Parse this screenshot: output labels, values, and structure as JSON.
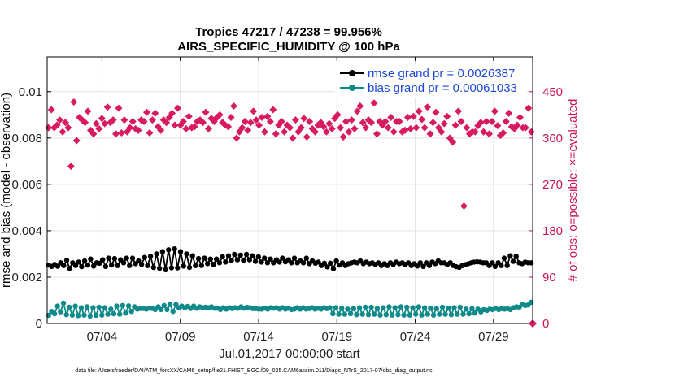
{
  "chart_data": {
    "type": "line",
    "title_line1": "Tropics 47217 / 47238 = 99.956%",
    "title_line2": "AIRS_SPECIFIC_HUMIDITY @ 100 hPa",
    "xlabel": "Jul.01,2017 00:00:00 start",
    "ylabel_left": "rmse and bias (model - observation)",
    "ylabel_right": "# of obs: o=possible; ×=evaluated",
    "footnote": "data file: /Users/raeder/DAI/ATM_forcXX/CAM6_setup/f.e21.FHIST_BGC.f09_025.CAM6assim.011/Diags_NTrS_2017-07/obs_diag_output.nc",
    "x_ticks": [
      {
        "value": 3.5,
        "label": "07/04"
      },
      {
        "value": 8.5,
        "label": "07/09"
      },
      {
        "value": 13.5,
        "label": "07/14"
      },
      {
        "value": 18.5,
        "label": "07/19"
      },
      {
        "value": 23.5,
        "label": "07/24"
      },
      {
        "value": 28.5,
        "label": "07/29"
      }
    ],
    "xlim": [
      0,
      31
    ],
    "ylim_left": [
      0,
      0.0115
    ],
    "ylim_right": [
      0,
      517.5
    ],
    "y_ticks_left": [
      {
        "value": 0,
        "label": "0"
      },
      {
        "value": 0.002,
        "label": "0.002"
      },
      {
        "value": 0.004,
        "label": "0.004"
      },
      {
        "value": 0.006,
        "label": "0.006"
      },
      {
        "value": 0.008,
        "label": "0.008"
      },
      {
        "value": 0.01,
        "label": "0.01"
      }
    ],
    "y_ticks_right": [
      {
        "value": 0,
        "label": "0"
      },
      {
        "value": 90,
        "label": "90"
      },
      {
        "value": 180,
        "label": "180"
      },
      {
        "value": 270,
        "label": "270"
      },
      {
        "value": 360,
        "label": "360"
      },
      {
        "value": 450,
        "label": "450"
      }
    ],
    "legend": [
      {
        "label": "rmse grand pr = 0.0026387",
        "color": "#000000"
      },
      {
        "label": "bias grand pr = 0.00061033",
        "color": "#0f8a8a"
      }
    ],
    "colors": {
      "rmse": "#000000",
      "bias": "#0f8a8a",
      "obs": "#d81b60",
      "right_axis": "#cc1452",
      "legend_text": "#1a47d8"
    },
    "rmse": [
      0.00252,
      0.00246,
      0.00255,
      0.00247,
      0.00262,
      0.0025,
      0.00272,
      0.00238,
      0.00262,
      0.0025,
      0.00265,
      0.00245,
      0.0027,
      0.00252,
      0.00278,
      0.00248,
      0.00262,
      0.0026,
      0.00275,
      0.00246,
      0.00282,
      0.00252,
      0.0028,
      0.0025,
      0.00275,
      0.00262,
      0.00282,
      0.0025,
      0.00282,
      0.00258,
      0.0027,
      0.00255,
      0.00285,
      0.0025,
      0.0029,
      0.00242,
      0.003,
      0.00238,
      0.0031,
      0.00232,
      0.00318,
      0.0024,
      0.00322,
      0.0024,
      0.0031,
      0.00248,
      0.003,
      0.00242,
      0.00292,
      0.0025,
      0.0028,
      0.0025,
      0.00282,
      0.00258,
      0.00278,
      0.00255,
      0.00278,
      0.00262,
      0.00288,
      0.00265,
      0.00292,
      0.00272,
      0.00298,
      0.00275,
      0.00295,
      0.00272,
      0.00298,
      0.00275,
      0.00292,
      0.00268,
      0.00288,
      0.00265,
      0.00282,
      0.00262,
      0.00278,
      0.00262,
      0.00275,
      0.00265,
      0.00282,
      0.00266,
      0.00275,
      0.00262,
      0.00282,
      0.00262,
      0.0027,
      0.00262,
      0.00282,
      0.00258,
      0.0027,
      0.0026,
      0.00265,
      0.0025,
      0.0026,
      0.00244,
      0.0026,
      0.00236,
      0.0027,
      0.00252,
      0.00262,
      0.0025,
      0.00258,
      0.00262,
      0.00265,
      0.00262,
      0.0027,
      0.00258,
      0.00265,
      0.00258,
      0.00262,
      0.00255,
      0.00262,
      0.0025,
      0.00258,
      0.0025,
      0.00262,
      0.00255,
      0.00265,
      0.00258,
      0.00262,
      0.00255,
      0.00262,
      0.0025,
      0.00258,
      0.00248,
      0.00262,
      0.00246,
      0.00262,
      0.0025,
      0.00265,
      0.00258,
      0.0027,
      0.00262,
      0.00262,
      0.00255,
      0.00262,
      0.0025,
      0.00245,
      0.00242,
      0.0025,
      0.00254,
      0.00258,
      0.00262,
      0.00265,
      0.00266,
      0.00265,
      0.00262,
      0.00262,
      0.0025,
      0.00262,
      0.00246,
      0.00262,
      0.0025,
      0.00282,
      0.0025,
      0.00292,
      0.00268,
      0.0029,
      0.00262,
      0.00258,
      0.00265,
      0.00262,
      0.00262
    ],
    "bias": [
      0.00035,
      0.00052,
      0.00042,
      0.00075,
      0.0005,
      0.00088,
      0.00038,
      0.0007,
      0.00036,
      0.00075,
      0.00034,
      0.00068,
      0.00036,
      0.00072,
      0.00032,
      0.00068,
      0.00035,
      0.0007,
      0.00036,
      0.00068,
      0.0004,
      0.00062,
      0.00042,
      0.00075,
      0.0004,
      0.00078,
      0.00045,
      0.00076,
      0.00052,
      0.00072,
      0.00062,
      0.00065,
      0.00065,
      0.00062,
      0.00066,
      0.00065,
      0.0006,
      0.00072,
      0.0006,
      0.00078,
      0.0006,
      0.00082,
      0.00052,
      0.00082,
      0.00068,
      0.00075,
      0.00068,
      0.00074,
      0.00065,
      0.00075,
      0.00066,
      0.00072,
      0.00068,
      0.0007,
      0.00068,
      0.00072,
      0.00066,
      0.00066,
      0.0006,
      0.00068,
      0.00062,
      0.00068,
      0.00064,
      0.00068,
      0.00066,
      0.00072,
      0.00066,
      0.0007,
      0.00068,
      0.00064,
      0.00064,
      0.00062,
      0.00062,
      0.00066,
      0.00062,
      0.00068,
      0.00066,
      0.00068,
      0.00062,
      0.00068,
      0.00062,
      0.00066,
      0.0006,
      0.00062,
      0.00068,
      0.00062,
      0.00068,
      0.00062,
      0.00064,
      0.00068,
      0.00062,
      0.00066,
      0.00062,
      0.00068,
      0.00064,
      0.00068,
      0.00042,
      0.00068,
      0.0004,
      0.00066,
      0.0004,
      0.00062,
      0.00042,
      0.00064,
      0.00038,
      0.00068,
      0.0004,
      0.0007,
      0.00038,
      0.0007,
      0.0004,
      0.00065,
      0.00036,
      0.00068,
      0.00038,
      0.00072,
      0.00036,
      0.00068,
      0.00038,
      0.00072,
      0.00036,
      0.0007,
      0.00036,
      0.00068,
      0.0004,
      0.00072,
      0.00036,
      0.00068,
      0.0004,
      0.00066,
      0.00036,
      0.00064,
      0.0004,
      0.0007,
      0.0004,
      0.00066,
      0.00038,
      0.00068,
      0.0004,
      0.0007,
      0.0004,
      0.00062,
      0.00042,
      0.00064,
      0.00045,
      0.00062,
      0.0005,
      0.0006,
      0.00056,
      0.00062,
      0.0006,
      0.00065,
      0.0006,
      0.00064,
      0.00062,
      0.00064,
      0.0006,
      0.00068,
      0.00072,
      0.0007,
      0.00082,
      0.00078,
      0.0008,
      0.00092
    ],
    "obs_count": [
      380,
      415,
      380,
      385,
      395,
      372,
      390,
      380,
      305,
      430,
      355,
      400,
      395,
      390,
      412,
      375,
      368,
      388,
      378,
      398,
      388,
      420,
      390,
      395,
      368,
      418,
      370,
      395,
      372,
      380,
      392,
      378,
      375,
      395,
      392,
      410,
      370,
      395,
      408,
      382,
      375,
      395,
      390,
      400,
      408,
      385,
      418,
      385,
      392,
      378,
      402,
      380,
      382,
      392,
      395,
      390,
      410,
      378,
      398,
      392,
      400,
      405,
      390,
      385,
      382,
      400,
      422,
      360,
      372,
      380,
      392,
      375,
      390,
      412,
      395,
      385,
      400,
      372,
      402,
      392,
      415,
      368,
      385,
      392,
      372,
      385,
      380,
      360,
      395,
      372,
      380,
      398,
      362,
      392,
      378,
      372,
      385,
      390,
      382,
      372,
      388,
      378,
      398,
      405,
      380,
      362,
      392,
      372,
      395,
      378,
      412,
      422,
      390,
      380,
      395,
      390,
      428,
      368,
      392,
      385,
      392,
      380,
      400,
      372,
      392,
      392,
      372,
      375,
      400,
      378,
      402,
      380,
      412,
      396,
      380,
      420,
      368,
      390,
      410,
      380,
      372,
      388,
      402,
      360,
      352,
      385,
      412,
      392,
      228,
      380,
      368,
      372,
      372,
      384,
      390,
      372,
      392,
      368,
      392,
      412,
      384,
      365,
      370,
      392,
      408,
      382,
      378,
      385,
      400,
      380,
      380,
      418,
      372
    ]
  }
}
